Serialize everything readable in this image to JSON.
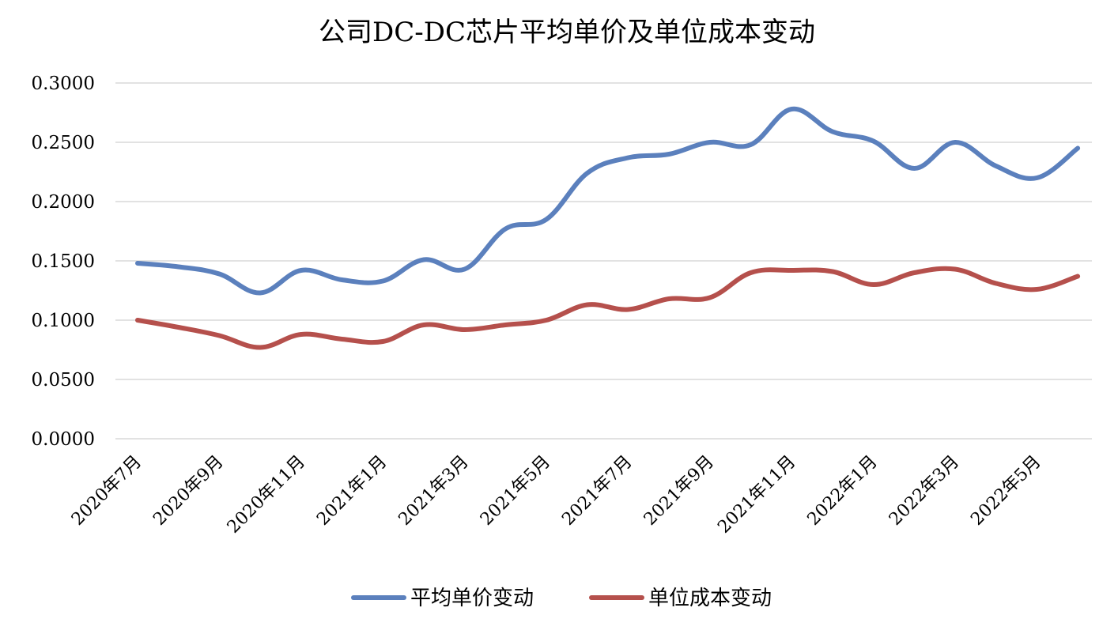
{
  "chart_data": {
    "type": "line",
    "title": "公司DC-DC芯片平均单价及单位成本变动",
    "xlabel": "",
    "ylabel": "",
    "ylim": [
      0,
      0.3
    ],
    "yticks": [
      "0.0000",
      "0.0500",
      "0.1000",
      "0.1500",
      "0.2000",
      "0.2500",
      "0.3000"
    ],
    "x": [
      "2020年7月",
      "2020年8月",
      "2020年9月",
      "2020年10月",
      "2020年11月",
      "2020年12月",
      "2021年1月",
      "2021年2月",
      "2021年3月",
      "2021年4月",
      "2021年5月",
      "2021年6月",
      "2021年7月",
      "2021年8月",
      "2021年9月",
      "2021年10月",
      "2021年11月",
      "2021年12月",
      "2022年1月",
      "2022年2月",
      "2022年3月",
      "2022年4月",
      "2022年5月",
      "2022年6月"
    ],
    "xtick_labels": [
      "2020年7月",
      "2020年9月",
      "2020年11月",
      "2021年1月",
      "2021年3月",
      "2021年5月",
      "2021年7月",
      "2021年9月",
      "2021年11月",
      "2022年1月",
      "2022年3月",
      "2022年5月"
    ],
    "grid": true,
    "legend_position": "bottom",
    "series": [
      {
        "name": "平均单价变动",
        "color": "#5b80bd",
        "values": [
          0.148,
          0.145,
          0.139,
          0.123,
          0.142,
          0.134,
          0.133,
          0.151,
          0.143,
          0.177,
          0.185,
          0.224,
          0.237,
          0.24,
          0.25,
          0.248,
          0.278,
          0.259,
          0.251,
          0.228,
          0.25,
          0.23,
          0.22,
          0.245
        ]
      },
      {
        "name": "单位成本变动",
        "color": "#b5504c",
        "values": [
          0.1,
          0.094,
          0.087,
          0.077,
          0.088,
          0.084,
          0.082,
          0.096,
          0.092,
          0.096,
          0.1,
          0.113,
          0.109,
          0.118,
          0.119,
          0.14,
          0.142,
          0.141,
          0.13,
          0.14,
          0.143,
          0.131,
          0.126,
          0.137
        ]
      }
    ]
  }
}
